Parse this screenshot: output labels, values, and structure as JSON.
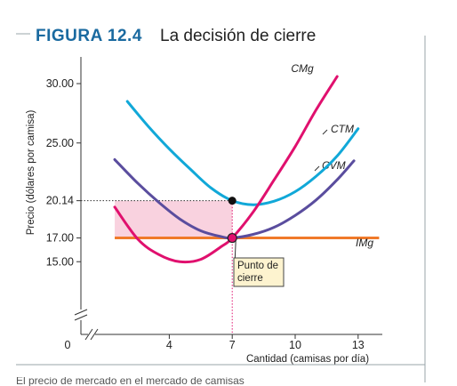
{
  "figure": {
    "number": "FIGURA 12.4",
    "title": "La decisión de cierre",
    "caption_partial": "El precio de mercado en el mercado de camisas"
  },
  "colors": {
    "title_accent": "#1a6aa0",
    "cmg": "#e0106e",
    "ctm": "#11a8d8",
    "cvm": "#5a4d9e",
    "img": "#f07a2a",
    "loss_area": "#f9d2df",
    "highlight": "#e0106e"
  },
  "chart_data": {
    "type": "line",
    "title": "La decisión de cierre",
    "xlabel": "Cantidad (camisas por día)",
    "ylabel": "Precio (dólares por camisa)",
    "xlim": [
      0,
      15
    ],
    "ylim": [
      10,
      32
    ],
    "axis_breaks": true,
    "x_ticks": [
      {
        "value": 0,
        "label": "0"
      },
      {
        "value": 4,
        "label": "4"
      },
      {
        "value": 7,
        "label": "7",
        "highlight": true
      },
      {
        "value": 10,
        "label": "10"
      },
      {
        "value": 13,
        "label": "13"
      }
    ],
    "y_ticks": [
      {
        "value": 30,
        "label": "30.00"
      },
      {
        "value": 25,
        "label": "25.00"
      },
      {
        "value": 20.14,
        "label": "20.14"
      },
      {
        "value": 17,
        "label": "17.00",
        "highlight": true
      },
      {
        "value": 15,
        "label": "15.00"
      }
    ],
    "series": [
      {
        "name": "CMg",
        "color": "#e0106e",
        "x": [
          1.4,
          2.5,
          3.5,
          4.5,
          5.5,
          6.5,
          7.0,
          8.0,
          9.0,
          10.0,
          11.0,
          12.0
        ],
        "y": [
          19.6,
          16.9,
          15.6,
          15.0,
          15.2,
          16.3,
          17.0,
          19.2,
          21.9,
          24.7,
          27.8,
          30.6
        ]
      },
      {
        "name": "CTM",
        "color": "#11a8d8",
        "x": [
          2.0,
          3.0,
          4.0,
          5.0,
          6.0,
          7.0,
          8.0,
          9.0,
          10.0,
          11.0,
          12.0,
          13.0
        ],
        "y": [
          28.5,
          26.4,
          24.5,
          22.8,
          21.2,
          20.14,
          19.8,
          20.1,
          20.9,
          22.2,
          23.9,
          26.2
        ]
      },
      {
        "name": "CVM",
        "color": "#5a4d9e",
        "x": [
          1.4,
          2.5,
          3.5,
          4.5,
          5.5,
          6.5,
          7.0,
          8.0,
          9.0,
          10.0,
          11.0,
          12.0,
          12.8
        ],
        "y": [
          23.6,
          21.6,
          20.0,
          18.6,
          17.6,
          17.1,
          17.0,
          17.3,
          17.9,
          18.9,
          20.2,
          21.9,
          23.5
        ]
      },
      {
        "name": "IMg",
        "color": "#f07a2a",
        "x": [
          1.4,
          14.0
        ],
        "y": [
          17,
          17
        ]
      }
    ],
    "loss_area": {
      "x": [
        1.4,
        7
      ],
      "y": [
        17,
        20.14
      ]
    },
    "points": [
      {
        "x": 7,
        "y": 20.14,
        "color": "#111111"
      },
      {
        "x": 7,
        "y": 17,
        "color": "#e0106e",
        "label": "Punto de\ncierre"
      }
    ],
    "annotations": [
      {
        "text": "Punto de",
        "text2": "cierre",
        "x": 7,
        "y": 17
      }
    ]
  }
}
